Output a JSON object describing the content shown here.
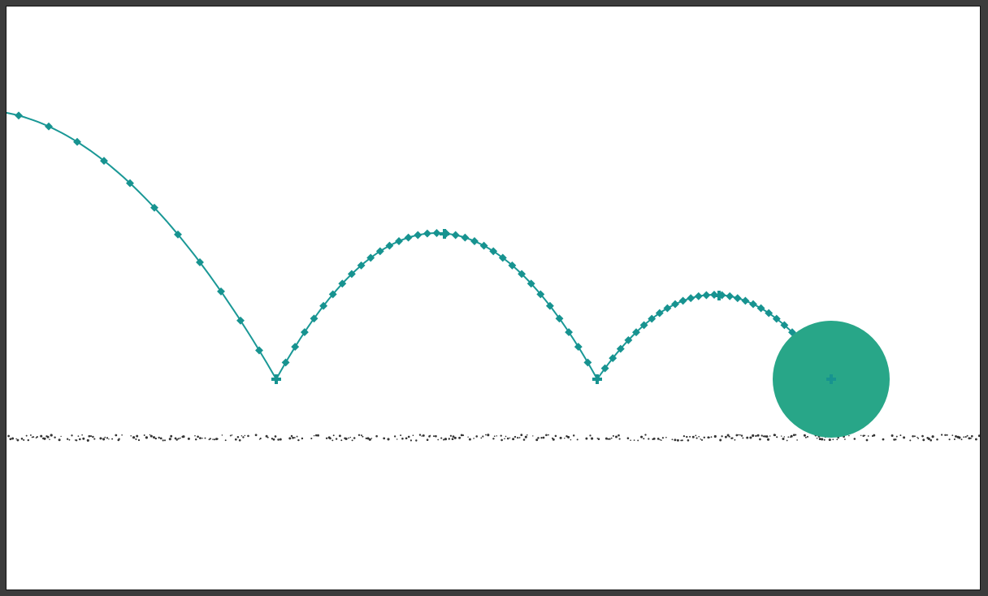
{
  "scene": {
    "title": "",
    "background_color": "#ffffff",
    "frame_color": "#3c3c3c"
  },
  "ball": {
    "color": "#28a688",
    "icon": "ball-icon"
  },
  "trajectory": {
    "color": "#1a9896",
    "marker_color": "#179390",
    "marker_shape": "diamond",
    "bounce_count": 2,
    "bounce_markers": "cross"
  },
  "ground": {
    "color": "#333333",
    "style": "speckled-dotted"
  }
}
